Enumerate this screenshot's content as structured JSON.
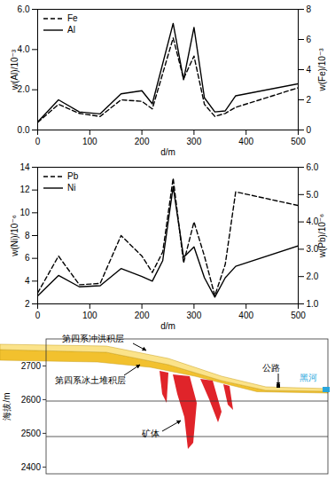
{
  "chart_data": [
    {
      "type": "line",
      "x_label": "d/m",
      "y_label": "w(Al)/10⁻³",
      "y2_label": "w(Fe)/10⁻³",
      "x": [
        0,
        40,
        80,
        120,
        160,
        200,
        220,
        260,
        280,
        300,
        320,
        340,
        360,
        380,
        500
      ],
      "xlim": [
        0,
        500
      ],
      "xticks": [
        0,
        100,
        200,
        300,
        400,
        500
      ],
      "ylim": [
        0,
        6
      ],
      "yticks": [
        0,
        2,
        4,
        6
      ],
      "y2lim": [
        0,
        8
      ],
      "y2ticks": [
        0,
        2,
        4,
        6,
        8
      ],
      "legend": "top-left",
      "series": [
        {
          "name": "Fe",
          "color": "#000000",
          "line_style": "dashed",
          "axis": "y2",
          "values": [
            0.5,
            1.7,
            1.1,
            0.9,
            2.0,
            1.9,
            1.4,
            6.1,
            3.4,
            4.9,
            1.7,
            0.9,
            1.1,
            1.5,
            2.8
          ]
        },
        {
          "name": "Al",
          "color": "#000000",
          "line_style": "solid",
          "values": [
            0.4,
            1.5,
            0.9,
            0.8,
            1.8,
            1.95,
            1.3,
            5.3,
            2.5,
            5.1,
            1.6,
            0.9,
            0.95,
            1.7,
            2.3
          ]
        }
      ]
    },
    {
      "type": "line",
      "x_label": "d/m",
      "y_label": "w(Ni)/10⁻⁶",
      "y2_label": "w(Pb)/10⁻⁶",
      "x": [
        0,
        40,
        80,
        120,
        160,
        200,
        220,
        240,
        260,
        280,
        300,
        320,
        340,
        360,
        380,
        500
      ],
      "xlim": [
        0,
        500
      ],
      "xticks": [
        0,
        100,
        200,
        300,
        400,
        500
      ],
      "ylim": [
        2,
        14
      ],
      "yticks": [
        2,
        4,
        6,
        8,
        10,
        12,
        14
      ],
      "y2lim": [
        1,
        6
      ],
      "y2ticks": [
        1,
        2,
        3,
        4,
        5,
        6
      ],
      "legend": "top-left",
      "series": [
        {
          "name": "Pb",
          "color": "#000000",
          "line_style": "dashed",
          "axis": "y2",
          "values": [
            1.4,
            2.75,
            1.7,
            1.75,
            3.5,
            2.75,
            2.15,
            2.9,
            5.6,
            2.5,
            4.0,
            2.75,
            1.3,
            2.45,
            5.1,
            4.6
          ]
        },
        {
          "name": "Ni",
          "color": "#000000",
          "line_style": "solid",
          "values": [
            2.7,
            4.5,
            3.5,
            3.6,
            5.1,
            4.4,
            4.0,
            5.8,
            12.3,
            6.1,
            7.0,
            4.3,
            2.6,
            4.3,
            5.3,
            7.1
          ]
        }
      ]
    }
  ],
  "diagram": {
    "y_label": "海拔/m",
    "ylim": [
      2380,
      2780
    ],
    "yticks": [
      2400,
      2500,
      2600,
      2700
    ],
    "labels": {
      "alluvial": "第四系冲洪积层",
      "moraine": "第四系冰土堆积层",
      "ore": "矿体",
      "road": "公路",
      "river": "黑河"
    }
  }
}
